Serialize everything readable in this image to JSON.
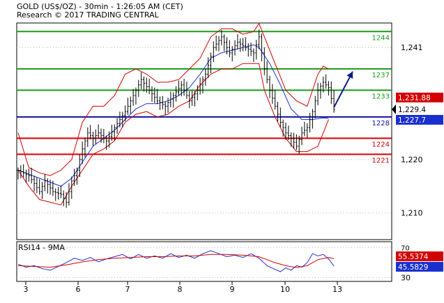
{
  "header": {
    "line1": "GOLD (US$/OZ) - 30min - 1:26:05 AM (CET)",
    "line2": "Research © 2017 TRADING CENTRAL"
  },
  "colors": {
    "price": "#000000",
    "bollinger": "#d40000",
    "ma": "#1a2fd0",
    "resistance": "#1a9a1a",
    "support": "#d40000",
    "pivot": "#1010a0",
    "arrow": "#0a1a8a",
    "grid": "#b5b5b5",
    "rsi": "#1a2fd0",
    "rsi_ma": "#d40000"
  },
  "chart_data": [
    {
      "type": "candlestick",
      "title": "GOLD (US$/OZ) - 30min",
      "ylim": [
        1205.0,
        1245.6
      ],
      "y_ticks": [
        1210,
        1220,
        1241
      ],
      "x_tick_labels": [
        "3",
        "6",
        "7",
        "8",
        "9",
        "10",
        "13"
      ],
      "levels": [
        {
          "value": 1244,
          "label": "1244",
          "kind": "resistance"
        },
        {
          "value": 1237,
          "label": "1237",
          "kind": "resistance"
        },
        {
          "value": 1233,
          "label": "1233",
          "kind": "resistance"
        },
        {
          "value": 1228,
          "label": "1228",
          "kind": "pivot"
        },
        {
          "value": 1224,
          "label": "1224",
          "kind": "support"
        },
        {
          "value": 1221,
          "label": "1221",
          "kind": "support"
        }
      ],
      "price_path": [
        [
          0,
          1218
        ],
        [
          4,
          1217
        ],
        [
          8,
          1214
        ],
        [
          10,
          1216
        ],
        [
          13,
          1214
        ],
        [
          16,
          1213.5
        ],
        [
          18,
          1212
        ],
        [
          20,
          1216
        ],
        [
          22,
          1218
        ],
        [
          24,
          1222
        ],
        [
          26,
          1225
        ],
        [
          28,
          1224
        ],
        [
          30,
          1225
        ],
        [
          33,
          1223.5
        ],
        [
          36,
          1226
        ],
        [
          40,
          1229
        ],
        [
          43,
          1232
        ],
        [
          46,
          1235
        ],
        [
          49,
          1233
        ],
        [
          52,
          1231
        ],
        [
          55,
          1230
        ],
        [
          58,
          1232
        ],
        [
          61,
          1234
        ],
        [
          64,
          1231
        ],
        [
          67,
          1233
        ],
        [
          70,
          1236
        ],
        [
          73,
          1241
        ],
        [
          76,
          1243
        ],
        [
          79,
          1240
        ],
        [
          82,
          1242
        ],
        [
          85,
          1241
        ],
        [
          88,
          1240
        ],
        [
          90,
          1243
        ],
        [
          92,
          1237
        ],
        [
          94,
          1233
        ],
        [
          96,
          1230
        ],
        [
          98,
          1227
        ],
        [
          100,
          1225
        ],
        [
          102,
          1224
        ],
        [
          104,
          1222.5
        ],
        [
          106,
          1225
        ],
        [
          108,
          1226
        ],
        [
          110,
          1229
        ],
        [
          112,
          1233
        ],
        [
          114,
          1234.5
        ],
        [
          116,
          1233.5
        ],
        [
          118,
          1229.4
        ]
      ],
      "bollinger_upper": [
        [
          0,
          1225
        ],
        [
          4,
          1218.5
        ],
        [
          8,
          1217.5
        ],
        [
          12,
          1217
        ],
        [
          16,
          1218
        ],
        [
          20,
          1220
        ],
        [
          24,
          1227
        ],
        [
          28,
          1230
        ],
        [
          32,
          1230
        ],
        [
          36,
          1232
        ],
        [
          40,
          1236
        ],
        [
          44,
          1237
        ],
        [
          48,
          1236
        ],
        [
          52,
          1234.5
        ],
        [
          56,
          1234.5
        ],
        [
          60,
          1235
        ],
        [
          64,
          1237
        ],
        [
          68,
          1239
        ],
        [
          72,
          1243
        ],
        [
          76,
          1244.5
        ],
        [
          80,
          1244.5
        ],
        [
          84,
          1243.5
        ],
        [
          88,
          1244
        ],
        [
          90,
          1245.5
        ],
        [
          92,
          1243
        ],
        [
          96,
          1238
        ],
        [
          100,
          1233
        ],
        [
          104,
          1231
        ],
        [
          108,
          1230
        ],
        [
          112,
          1236
        ],
        [
          114,
          1237.5
        ],
        [
          116,
          1237
        ]
      ],
      "bollinger_lower": [
        [
          0,
          1218
        ],
        [
          4,
          1215
        ],
        [
          8,
          1212.5
        ],
        [
          12,
          1212
        ],
        [
          16,
          1211.5
        ],
        [
          20,
          1215
        ],
        [
          24,
          1218
        ],
        [
          28,
          1221
        ],
        [
          32,
          1222
        ],
        [
          36,
          1223.5
        ],
        [
          40,
          1227
        ],
        [
          44,
          1228.5
        ],
        [
          48,
          1229
        ],
        [
          52,
          1228
        ],
        [
          56,
          1228.5
        ],
        [
          60,
          1230
        ],
        [
          64,
          1231
        ],
        [
          68,
          1234
        ],
        [
          72,
          1236
        ],
        [
          76,
          1237
        ],
        [
          80,
          1237
        ],
        [
          84,
          1238
        ],
        [
          88,
          1238
        ],
        [
          90,
          1238
        ],
        [
          92,
          1233
        ],
        [
          96,
          1228
        ],
        [
          100,
          1224
        ],
        [
          104,
          1221.5
        ],
        [
          108,
          1221.5
        ],
        [
          112,
          1222.5
        ],
        [
          116,
          1227.5
        ]
      ],
      "moving_average": [
        [
          0,
          1218
        ],
        [
          8,
          1216.5
        ],
        [
          16,
          1215
        ],
        [
          20,
          1216.5
        ],
        [
          24,
          1219.5
        ],
        [
          28,
          1222.5
        ],
        [
          32,
          1224
        ],
        [
          36,
          1225.5
        ],
        [
          40,
          1227.5
        ],
        [
          44,
          1229.5
        ],
        [
          48,
          1230.5
        ],
        [
          52,
          1230.5
        ],
        [
          56,
          1231
        ],
        [
          60,
          1232
        ],
        [
          64,
          1233.5
        ],
        [
          68,
          1236
        ],
        [
          72,
          1239
        ],
        [
          76,
          1240
        ],
        [
          80,
          1240.5
        ],
        [
          84,
          1241
        ],
        [
          88,
          1241.5
        ],
        [
          90,
          1241
        ],
        [
          94,
          1238
        ],
        [
          98,
          1234
        ],
        [
          102,
          1229.5
        ],
        [
          106,
          1227.5
        ],
        [
          110,
          1227.5
        ],
        [
          114,
          1227.8
        ],
        [
          116,
          1227.7
        ]
      ],
      "projection": {
        "from": [
          118,
          1229.8
        ],
        "to": [
          125,
          1236.5
        ]
      },
      "current_labels": [
        {
          "value": 1231.88,
          "text": "1,231.88",
          "style": "red"
        },
        {
          "value": 1229.4,
          "text": "1,229.4",
          "style": "black"
        },
        {
          "value": 1227.7,
          "text": "1,227.7",
          "style": "blue"
        }
      ]
    },
    {
      "type": "line",
      "title": "RSI14 - 9MA",
      "ylim": [
        25,
        78
      ],
      "y_ticks": [
        30
      ],
      "reference_levels": [
        30,
        70
      ],
      "series": [
        {
          "name": "RSI14",
          "color": "#1a2fd0",
          "points": [
            [
              0,
              48
            ],
            [
              3,
              44
            ],
            [
              6,
              46
            ],
            [
              9,
              42
            ],
            [
              12,
              40
            ],
            [
              15,
              45
            ],
            [
              18,
              50
            ],
            [
              21,
              56
            ],
            [
              24,
              53
            ],
            [
              27,
              57
            ],
            [
              30,
              51
            ],
            [
              33,
              55
            ],
            [
              36,
              58
            ],
            [
              39,
              61
            ],
            [
              42,
              55
            ],
            [
              45,
              61
            ],
            [
              48,
              56
            ],
            [
              51,
              59
            ],
            [
              54,
              56
            ],
            [
              57,
              62
            ],
            [
              60,
              57
            ],
            [
              63,
              60
            ],
            [
              66,
              56
            ],
            [
              69,
              62
            ],
            [
              72,
              66
            ],
            [
              75,
              62
            ],
            [
              78,
              58
            ],
            [
              81,
              60
            ],
            [
              84,
              57
            ],
            [
              87,
              62
            ],
            [
              90,
              56
            ],
            [
              93,
              46
            ],
            [
              96,
              41
            ],
            [
              98,
              38
            ],
            [
              100,
              43
            ],
            [
              102,
              40
            ],
            [
              104,
              46
            ],
            [
              106,
              44
            ],
            [
              108,
              50
            ],
            [
              110,
              62
            ],
            [
              112,
              59
            ],
            [
              114,
              61
            ],
            [
              116,
              55
            ],
            [
              118,
              45.58
            ]
          ]
        },
        {
          "name": "9MA",
          "color": "#d40000",
          "points": [
            [
              0,
              46
            ],
            [
              6,
              45
            ],
            [
              12,
              44
            ],
            [
              18,
              47
            ],
            [
              24,
              51
            ],
            [
              30,
              54
            ],
            [
              36,
              56
            ],
            [
              42,
              57
            ],
            [
              48,
              58
            ],
            [
              54,
              58
            ],
            [
              60,
              59
            ],
            [
              66,
              59
            ],
            [
              72,
              61
            ],
            [
              78,
              61
            ],
            [
              84,
              60
            ],
            [
              90,
              58
            ],
            [
              96,
              50
            ],
            [
              100,
              46
            ],
            [
              104,
              43.5
            ],
            [
              108,
              46
            ],
            [
              112,
              54
            ],
            [
              116,
              57
            ],
            [
              118,
              55.54
            ]
          ]
        }
      ],
      "current_labels": [
        {
          "value": 55.5374,
          "text": "55.5374",
          "style": "red"
        },
        {
          "value": 45.5829,
          "text": "45.5829",
          "style": "blue"
        }
      ],
      "rsi_tick_70": "70"
    }
  ]
}
